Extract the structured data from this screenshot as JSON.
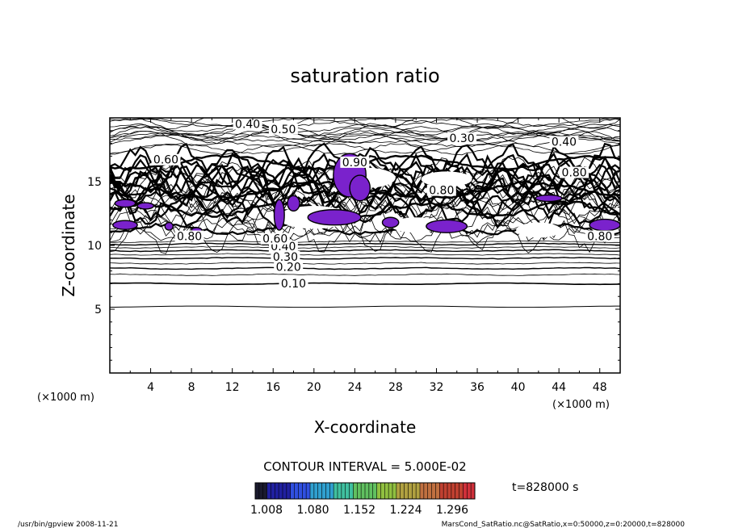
{
  "chart_data": {
    "type": "contour",
    "title": "saturation ratio",
    "xlabel": "X-coordinate",
    "ylabel": "Z-coordinate",
    "x_unit": "(×1000 m)",
    "z_unit": "(×1000 m)",
    "xlim": [
      0,
      50
    ],
    "ylim": [
      0,
      20
    ],
    "x_ticks": [
      "4",
      "8",
      "12",
      "16",
      "20",
      "24",
      "28",
      "32",
      "36",
      "40",
      "44",
      "48"
    ],
    "y_ticks": [
      "5",
      "10",
      "15"
    ],
    "contour_interval_text": "CONTOUR INTERVAL = 5.000E-02",
    "time_text": "t=828000 s",
    "contour_labels": [
      {
        "text": "0.10",
        "x": 18.0,
        "z": 6.9
      },
      {
        "text": "0.20",
        "x": 17.5,
        "z": 8.2
      },
      {
        "text": "0.30",
        "x": 17.2,
        "z": 9.0
      },
      {
        "text": "0.40",
        "x": 17.0,
        "z": 9.8
      },
      {
        "text": "0.60",
        "x": 16.2,
        "z": 10.4
      },
      {
        "text": "0.80",
        "x": 7.8,
        "z": 10.6
      },
      {
        "text": "0.80",
        "x": 48.0,
        "z": 10.6
      },
      {
        "text": "0.40",
        "x": 13.5,
        "z": 19.4
      },
      {
        "text": "0.50",
        "x": 17.0,
        "z": 19.0
      },
      {
        "text": "0.30",
        "x": 34.5,
        "z": 18.3
      },
      {
        "text": "0.60",
        "x": 5.5,
        "z": 16.6
      },
      {
        "text": "0.90",
        "x": 24.0,
        "z": 16.4
      },
      {
        "text": "0.80",
        "x": 45.5,
        "z": 15.6
      },
      {
        "text": "0.80",
        "x": 32.5,
        "z": 14.2
      },
      {
        "text": "0.40",
        "x": 44.5,
        "z": 18.0
      }
    ],
    "supersaturated_regions_value": ">1.0",
    "colorbar": {
      "min": 1.008,
      "max": 1.296,
      "tick_labels": [
        "1.008",
        "1.080",
        "1.152",
        "1.224",
        "1.296"
      ],
      "colors": [
        "#1a1a2e",
        "#2020a0",
        "#3050e0",
        "#30a0d0",
        "#40c0a0",
        "#60c060",
        "#90c040",
        "#b0a040",
        "#c07040",
        "#c04030",
        "#d0303a"
      ]
    },
    "fill_color": "#7a22cc"
  },
  "footer": {
    "left": "/usr/bin/gpview   2008-11-21",
    "right": "MarsCond_SatRatio.nc@SatRatio,x=0:50000,z=0:20000,t=828000"
  }
}
